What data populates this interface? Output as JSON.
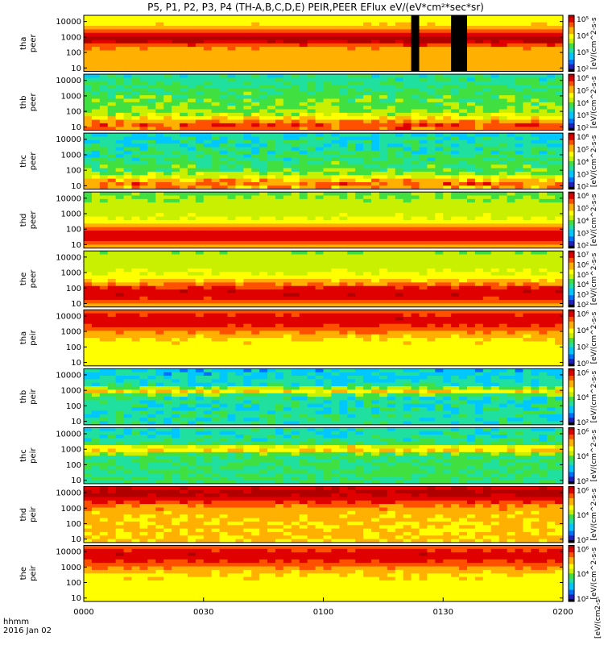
{
  "title": "P5, P1, P2, P3, P4 (TH-A,B,C,D,E) PEIR,PEER EFlux eV/(eV*cm²*sec*sr)",
  "time_label": "hhmm",
  "date_label": "2016 Jan 02",
  "colorbar_label_electron": "[eV/(cm^2-s-sr-eV)] (eV/(cm^2-sec-sr-eV)) (4)",
  "colorbar_label_ion": "[eV/(cm^2-s-sr-eV)] (eV/(cm^2-sec-sr-eV))",
  "colorbar_unit_bottom": "[eV/(cm2-s-",
  "colors": {
    "scale": [
      "#000000",
      "#2020c0",
      "#0070ff",
      "#00c8ff",
      "#20e0a0",
      "#40e040",
      "#c8f000",
      "#ffff00",
      "#ffb000",
      "#ff5000",
      "#e00000",
      "#b00000"
    ]
  },
  "chart_data": {
    "type": "heatmap",
    "x": {
      "label": "",
      "ticks": [
        "0000",
        "0030",
        "0100",
        "0130",
        "0200"
      ],
      "range_minutes": [
        0,
        120
      ]
    },
    "y": {
      "scale": "log",
      "ticks": [
        "10",
        "100",
        "1000",
        "10000"
      ],
      "range_eV": [
        6,
        25000
      ]
    },
    "panels": [
      {
        "name": "tha peer",
        "species": "electron",
        "cbar_ticks": [
          "10⁵",
          "10⁴",
          "10³",
          "10²"
        ],
        "base": 7.8,
        "peak": 800,
        "width": 0.5,
        "noise": 0.4,
        "gaps": [
          [
            82,
            84
          ],
          [
            93,
            95
          ]
        ]
      },
      {
        "name": "thb peer",
        "species": "electron",
        "cbar_ticks": [
          "10⁶",
          "10⁵",
          "10⁴",
          "10³",
          "10²"
        ],
        "base": 6.0,
        "peak": 12,
        "width": 0.55,
        "noise": 1.6,
        "gaps": []
      },
      {
        "name": "thc peer",
        "species": "electron",
        "cbar_ticks": [
          "10⁶",
          "10⁵",
          "10⁴",
          "10³",
          "10²"
        ],
        "base": 5.4,
        "peak": 12,
        "width": 0.55,
        "noise": 2.0,
        "gaps": []
      },
      {
        "name": "thd peer",
        "species": "electron",
        "cbar_ticks": [
          "10⁶",
          "10⁵",
          "10⁴",
          "10³",
          "10²"
        ],
        "base": 7.0,
        "peak": 40,
        "width": 0.7,
        "noise": 0.5,
        "gaps": []
      },
      {
        "name": "the peer",
        "species": "electron",
        "cbar_ticks": [
          "10⁷",
          "10⁶",
          "10⁵",
          "10⁴",
          "10³",
          "10²"
        ],
        "base": 7.2,
        "peak": 50,
        "width": 0.7,
        "noise": 0.5,
        "gaps": []
      },
      {
        "name": "tha peir",
        "species": "ion",
        "cbar_ticks": [
          "10⁶",
          "10⁴",
          "10²",
          "10⁰"
        ],
        "base": 7.0,
        "peak": 6000,
        "width": 0.9,
        "noise": 0.8,
        "gaps": []
      },
      {
        "name": "thb peir",
        "species": "ion",
        "cbar_ticks": [
          "10⁶",
          "10⁴",
          "10²"
        ],
        "base": 4.0,
        "peak": 900,
        "width": 0.25,
        "noise": 1.8,
        "gaps": []
      },
      {
        "name": "thc peir",
        "species": "ion",
        "cbar_ticks": [
          "10⁶",
          "10⁴",
          "10²"
        ],
        "base": 4.5,
        "peak": 1000,
        "width": 0.25,
        "noise": 1.8,
        "gaps": []
      },
      {
        "name": "thd peir",
        "species": "ion",
        "cbar_ticks": [
          "10⁶",
          "10⁴",
          "10²"
        ],
        "base": 7.6,
        "peak": 10000,
        "width": 0.8,
        "noise": 0.8,
        "gaps": []
      },
      {
        "name": "the peir",
        "species": "ion",
        "cbar_ticks": [
          "10⁶",
          "10⁴",
          "10²"
        ],
        "base": 7.0,
        "peak": 6000,
        "width": 0.9,
        "noise": 0.8,
        "gaps": []
      }
    ]
  }
}
